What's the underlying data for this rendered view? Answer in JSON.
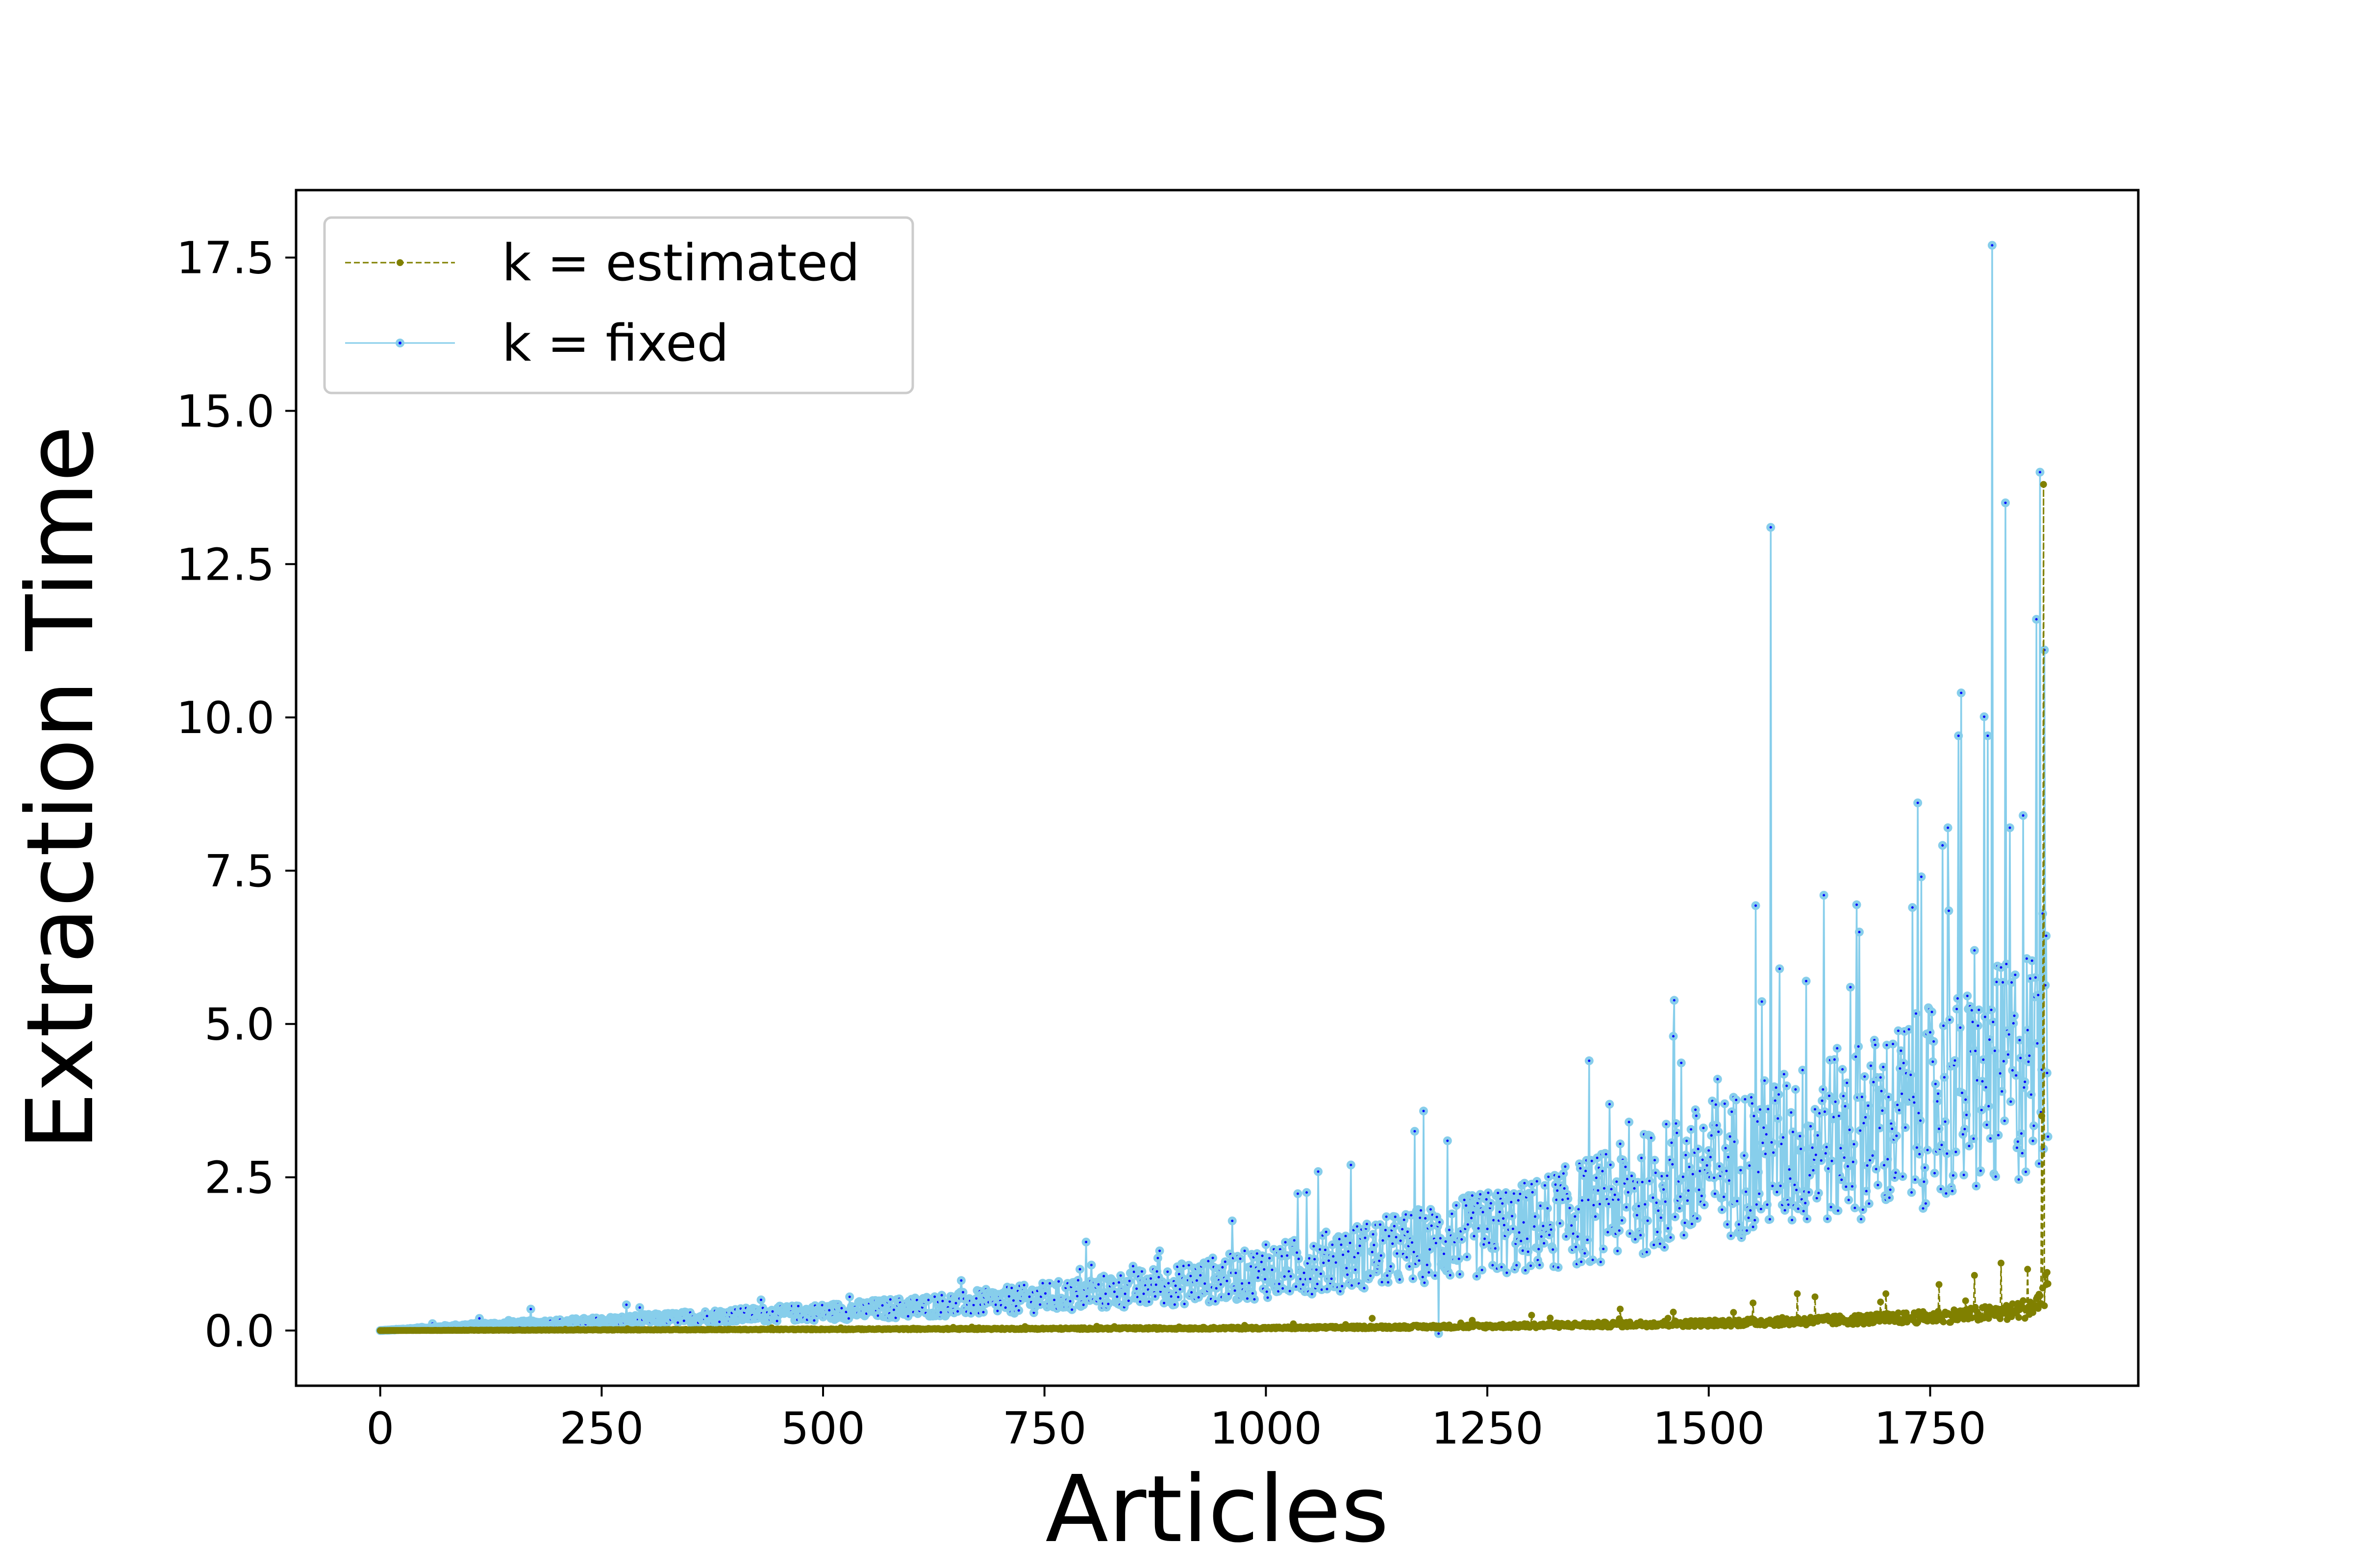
{
  "chart_data": {
    "type": "line",
    "title": "",
    "xlabel": "Articles",
    "ylabel": "Extraction Time",
    "xlim": [
      -95,
      1985
    ],
    "ylim": [
      -0.9,
      18.6
    ],
    "x_ticks": [
      0,
      250,
      500,
      750,
      1000,
      1250,
      1500,
      1750
    ],
    "x_tick_labels": [
      "0",
      "250",
      "500",
      "750",
      "1000",
      "1250",
      "1500",
      "1750"
    ],
    "y_ticks": [
      0.0,
      2.5,
      5.0,
      7.5,
      10.0,
      12.5,
      15.0,
      17.5
    ],
    "y_tick_labels": [
      "0.0",
      "2.5",
      "5.0",
      "7.5",
      "10.0",
      "12.5",
      "15.0",
      "17.5"
    ],
    "grid": false,
    "legend_position": "top-left",
    "n_points": 1884,
    "series": [
      {
        "name": "k = estimated",
        "color": "#808000",
        "line_style": "dashed",
        "marker": "dot",
        "anchors": [
          [
            0,
            0.0
          ],
          [
            250,
            0.01
          ],
          [
            500,
            0.02
          ],
          [
            750,
            0.03
          ],
          [
            1000,
            0.04
          ],
          [
            1250,
            0.07
          ],
          [
            1500,
            0.12
          ],
          [
            1650,
            0.17
          ],
          [
            1750,
            0.22
          ],
          [
            1840,
            0.3
          ],
          [
            1870,
            0.4
          ],
          [
            1884,
            0.9
          ]
        ],
        "noise": 0.45,
        "spikes": [
          [
            1120,
            0.2
          ],
          [
            1300,
            0.25
          ],
          [
            1400,
            0.35
          ],
          [
            1460,
            0.3
          ],
          [
            1550,
            0.45
          ],
          [
            1600,
            0.6
          ],
          [
            1620,
            0.55
          ],
          [
            1700,
            0.6
          ],
          [
            1760,
            0.75
          ],
          [
            1800,
            0.9
          ],
          [
            1830,
            1.1
          ],
          [
            1860,
            1.0
          ],
          [
            1876,
            3.5
          ],
          [
            1878,
            13.8
          ]
        ]
      },
      {
        "name": "k = fixed",
        "color": "#87ceeb",
        "line_style": "solid",
        "marker": "circle",
        "marker_center_color": "#0000ff",
        "anchors": [
          [
            0,
            0.0
          ],
          [
            100,
            0.08
          ],
          [
            250,
            0.15
          ],
          [
            400,
            0.25
          ],
          [
            500,
            0.3
          ],
          [
            600,
            0.38
          ],
          [
            700,
            0.48
          ],
          [
            800,
            0.6
          ],
          [
            900,
            0.75
          ],
          [
            1000,
            0.95
          ],
          [
            1100,
            1.2
          ],
          [
            1200,
            1.45
          ],
          [
            1300,
            1.7
          ],
          [
            1400,
            2.1
          ],
          [
            1500,
            2.6
          ],
          [
            1600,
            3.0
          ],
          [
            1700,
            3.4
          ],
          [
            1800,
            3.9
          ],
          [
            1850,
            4.3
          ],
          [
            1884,
            4.6
          ]
        ],
        "noise": 0.45,
        "spikes": [
          [
            170,
            0.35
          ],
          [
            430,
            0.5
          ],
          [
            530,
            0.55
          ],
          [
            790,
            1.0
          ],
          [
            850,
            1.05
          ],
          [
            880,
            1.3
          ],
          [
            1000,
            1.4
          ],
          [
            1080,
            1.5
          ],
          [
            1168,
            3.25
          ],
          [
            1195,
            -0.05
          ],
          [
            1260,
            2.2
          ],
          [
            1365,
            4.4
          ],
          [
            1380,
            2.6
          ],
          [
            1410,
            3.4
          ],
          [
            1460,
            4.8
          ],
          [
            1510,
            4.1
          ],
          [
            1570,
            13.1
          ],
          [
            1580,
            5.9
          ],
          [
            1610,
            5.7
          ],
          [
            1630,
            7.1
          ],
          [
            1660,
            5.6
          ],
          [
            1670,
            6.5
          ],
          [
            1730,
            6.9
          ],
          [
            1740,
            7.4
          ],
          [
            1770,
            8.2
          ],
          [
            1782,
            9.7
          ],
          [
            1785,
            10.4
          ],
          [
            1800,
            6.2
          ],
          [
            1815,
            9.7
          ],
          [
            1820,
            17.7
          ],
          [
            1835,
            13.5
          ],
          [
            1840,
            8.2
          ],
          [
            1855,
            8.4
          ],
          [
            1860,
            4.9
          ],
          [
            1870,
            11.6
          ],
          [
            1874,
            14.0
          ],
          [
            1877,
            6.8
          ],
          [
            1879,
            11.1
          ],
          [
            1882,
            4.2
          ]
        ]
      }
    ]
  }
}
